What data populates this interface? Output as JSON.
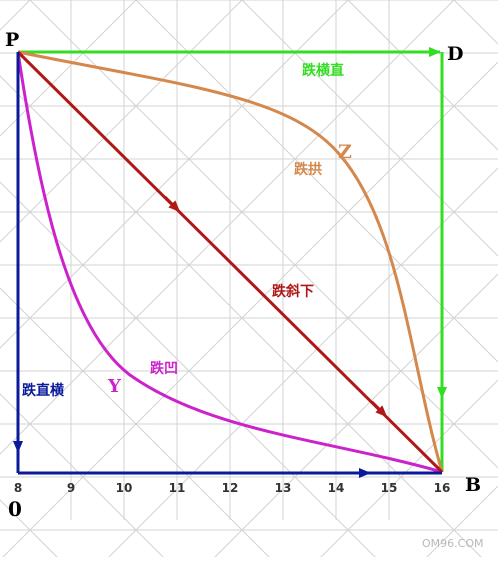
{
  "points": {
    "p": "P",
    "d": "D",
    "b": "B",
    "o": "0"
  },
  "paths": {
    "horizontal_then_vertical": "跌横直",
    "arch": "跌拱",
    "diagonal": "跌斜下",
    "concave": "跌凹",
    "vertical_then_horizontal": "跌直横"
  },
  "curve_letters": {
    "arch": "Z",
    "concave": "Y"
  },
  "x_ticks": [
    "8",
    "9",
    "10",
    "11",
    "12",
    "13",
    "14",
    "15",
    "16"
  ],
  "watermark": "OM96.COM",
  "colors": {
    "green": "#33dd22",
    "orange": "#d4884c",
    "red": "#b01818",
    "magenta": "#cc22cc",
    "blue": "#0a1a9a",
    "grid": "#cfcfcf"
  }
}
